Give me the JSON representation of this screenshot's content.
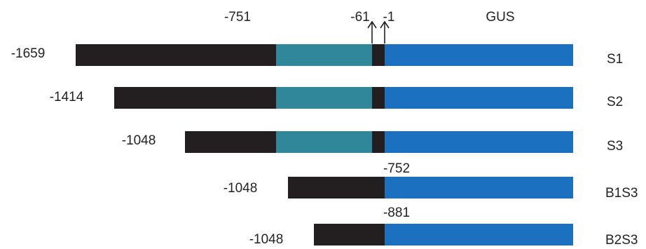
{
  "header": {
    "label_751": "-751",
    "label_61": "-61",
    "label_1": "-1",
    "label_gus": "GUS"
  },
  "colors": {
    "promoter_black": "#231f20",
    "region_teal": "#31879a",
    "gus_blue": "#1b71c0",
    "text": "#222222"
  },
  "constructs": [
    {
      "name": "S1",
      "start_label": "-1659",
      "segments": [
        {
          "type": "black",
          "from": -1659,
          "to": -751
        },
        {
          "type": "teal",
          "from": -751,
          "to": -61
        },
        {
          "type": "black",
          "from": -61,
          "to": -1
        },
        {
          "type": "gus"
        }
      ]
    },
    {
      "name": "S2",
      "start_label": "-1414",
      "segments": [
        {
          "type": "black",
          "from": -1414,
          "to": -751
        },
        {
          "type": "teal",
          "from": -751,
          "to": -61
        },
        {
          "type": "black",
          "from": -61,
          "to": -1
        },
        {
          "type": "gus"
        }
      ]
    },
    {
      "name": "S3",
      "start_label": "-1048",
      "segments": [
        {
          "type": "black",
          "from": -1048,
          "to": -751
        },
        {
          "type": "teal",
          "from": -751,
          "to": -61
        },
        {
          "type": "black",
          "from": -61,
          "to": -1
        },
        {
          "type": "gus"
        }
      ]
    },
    {
      "name": "B1S3",
      "start_label": "-1048",
      "junction_label": "-752",
      "segments": [
        {
          "type": "black"
        },
        {
          "type": "gus"
        }
      ]
    },
    {
      "name": "B2S3",
      "start_label": "-1048",
      "junction_label": "-881",
      "segments": [
        {
          "type": "black"
        },
        {
          "type": "gus"
        }
      ]
    }
  ]
}
